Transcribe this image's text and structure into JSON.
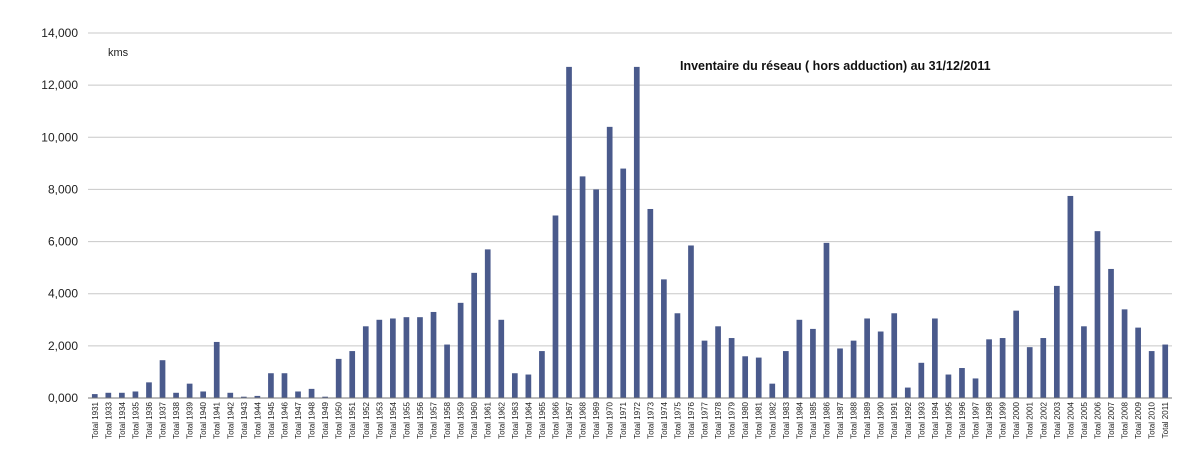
{
  "chart_data": {
    "type": "bar",
    "title": "Inventaire du réseau ( hors adduction) au 31/12/2011",
    "unit_label": "kms",
    "xlabel": "",
    "ylabel": "",
    "ylim": [
      0,
      14000
    ],
    "y_ticks": [
      "0,000",
      "2,000",
      "4,000",
      "6,000",
      "8,000",
      "10,000",
      "12,000",
      "14,000"
    ],
    "grid": true,
    "legend": "none",
    "bar_color": "#4a5a8c",
    "categories": [
      "Total 1931",
      "Total 1933",
      "Total 1934",
      "Total 1935",
      "Total 1936",
      "Total 1937",
      "Total 1938",
      "Total 1939",
      "Total 1940",
      "Total 1941",
      "Total 1942",
      "Total 1943",
      "Total 1944",
      "Total 1945",
      "Total 1946",
      "Total 1947",
      "Total 1948",
      "Total 1949",
      "Total 1950",
      "Total 1951",
      "Total 1952",
      "Total 1953",
      "Total 1954",
      "Total 1955",
      "Total 1956",
      "Total 1957",
      "Total 1958",
      "Total 1959",
      "Total 1960",
      "Total 1961",
      "Total 1962",
      "Total 1963",
      "Total 1964",
      "Total 1965",
      "Total 1966",
      "Total 1967",
      "Total 1968",
      "Total 1969",
      "Total 1970",
      "Total 1971",
      "Total 1972",
      "Total 1973",
      "Total 1974",
      "Total 1975",
      "Total 1976",
      "Total 1977",
      "Total 1978",
      "Total 1979",
      "Total 1980",
      "Total 1981",
      "Total 1982",
      "Total 1983",
      "Total 1984",
      "Total 1985",
      "Total 1986",
      "Total 1987",
      "Total 1988",
      "Total 1989",
      "Total 1990",
      "Total 1991",
      "Total 1992",
      "Total 1993",
      "Total 1994",
      "Total 1995",
      "Total 1996",
      "Total 1997",
      "Total 1998",
      "Total 1999",
      "Total 2000",
      "Total 2001",
      "Total 2002",
      "Total 2003",
      "Total 2004",
      "Total 2005",
      "Total 2006",
      "Total 2007",
      "Total 2008",
      "Total 2009",
      "Total 2010",
      "Total 2011"
    ],
    "values": [
      150,
      200,
      200,
      250,
      600,
      1450,
      200,
      550,
      250,
      2150,
      200,
      50,
      80,
      950,
      950,
      250,
      350,
      50,
      1500,
      1800,
      2750,
      3000,
      3050,
      3100,
      3100,
      3300,
      2050,
      3650,
      4800,
      5700,
      3000,
      950,
      900,
      1800,
      7000,
      12700,
      8500,
      8000,
      10400,
      8800,
      12700,
      7250,
      4550,
      3250,
      5850,
      2200,
      2750,
      2300,
      1600,
      1550,
      550,
      1800,
      3000,
      2650,
      5950,
      1900,
      2200,
      3050,
      2550,
      3250,
      400,
      1350,
      3050,
      900,
      1150,
      750,
      2250,
      2300,
      3350,
      1950,
      2300,
      4300,
      7750,
      2750,
      6400,
      4950,
      3400,
      2700,
      1800,
      2050
    ]
  }
}
